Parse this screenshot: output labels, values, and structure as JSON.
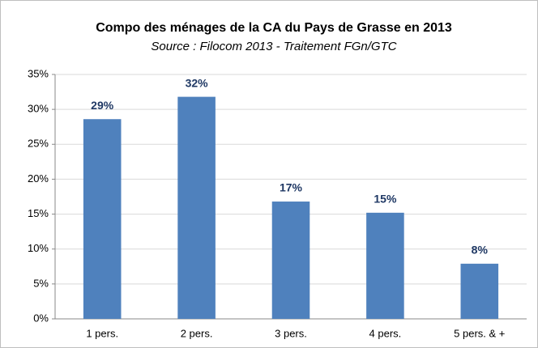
{
  "chart_data": {
    "type": "bar",
    "title": "Compo des ménages de la CA du Pays de Grasse en 2013",
    "subtitle": "Source : Filocom 2013 - Traitement FGn/GTC",
    "categories": [
      "1 pers.",
      "2 pers.",
      "3 pers.",
      "4 pers.",
      "5 pers. & +"
    ],
    "values": [
      28.6,
      31.8,
      16.8,
      15.2,
      7.9
    ],
    "value_labels": [
      "29%",
      "32%",
      "17%",
      "15%",
      "8%"
    ],
    "color": "#4f81bd",
    "ylim": [
      0,
      35
    ],
    "yticks": [
      {
        "value": 0,
        "label": "0%"
      },
      {
        "value": 5,
        "label": "5%"
      },
      {
        "value": 10,
        "label": "10%"
      },
      {
        "value": 15,
        "label": "15%"
      },
      {
        "value": 20,
        "label": "20%"
      },
      {
        "value": 25,
        "label": "25%"
      },
      {
        "value": 30,
        "label": "30%"
      },
      {
        "value": 35,
        "label": "35%"
      }
    ],
    "grid": true
  }
}
